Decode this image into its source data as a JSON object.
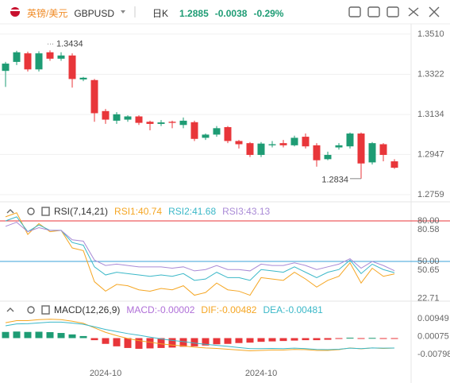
{
  "header": {
    "name": "英镑/美元",
    "symbol": "GBPUSD",
    "period": "日K",
    "price": "1.2885",
    "change": "-0.0038",
    "change_pct": "-0.29%"
  },
  "chart_data": [
    {
      "type": "candlestick",
      "up_color": "#1e9c74",
      "down_color": "#e8363a",
      "open": [
        1.3338,
        1.338,
        1.342,
        1.3345,
        1.3425,
        1.3395,
        1.341,
        1.3298,
        1.3295,
        1.315,
        1.3105,
        1.311,
        1.3125,
        1.31,
        1.309,
        1.31,
        1.3085,
        1.3098,
        1.3025,
        1.304,
        1.3075,
        1.301,
        1.3,
        1.2945,
        1.299,
        1.3,
        1.299,
        1.303,
        1.299,
        1.2925,
        1.298,
        1.2985,
        1.3045,
        1.291,
        1.2995,
        1.2915
      ],
      "high": [
        1.338,
        1.3432,
        1.3428,
        1.343,
        1.3434,
        1.3425,
        1.342,
        1.331,
        1.33,
        1.316,
        1.3145,
        1.313,
        1.313,
        1.3105,
        1.3108,
        1.3105,
        1.312,
        1.3105,
        1.3045,
        1.308,
        1.308,
        1.3015,
        1.3005,
        1.3005,
        1.301,
        1.3015,
        1.3035,
        1.3045,
        1.3,
        1.296,
        1.3,
        1.305,
        1.305,
        1.3005,
        1.3,
        1.2925
      ],
      "low": [
        1.3263,
        1.3365,
        1.3335,
        1.3335,
        1.3385,
        1.3385,
        1.326,
        1.329,
        1.31,
        1.309,
        1.309,
        1.31,
        1.3085,
        1.306,
        1.308,
        1.307,
        1.307,
        1.301,
        1.3015,
        1.303,
        1.3,
        1.2975,
        1.2935,
        1.2935,
        1.298,
        1.298,
        1.2985,
        1.2975,
        1.289,
        1.292,
        1.297,
        1.2975,
        1.2834,
        1.29,
        1.2915,
        1.288
      ],
      "close": [
        1.3372,
        1.3425,
        1.3345,
        1.342,
        1.3395,
        1.341,
        1.33,
        1.3306,
        1.314,
        1.311,
        1.3135,
        1.3125,
        1.3095,
        1.309,
        1.3097,
        1.3095,
        1.3105,
        1.302,
        1.304,
        1.307,
        1.301,
        1.2995,
        1.2945,
        1.2998,
        1.2995,
        1.299,
        1.3025,
        1.2985,
        1.292,
        1.2945,
        1.299,
        1.3045,
        1.2905,
        1.3,
        1.2945,
        1.2885
      ],
      "max_label": "1.3434",
      "min_label": "1.2834",
      "ylim": [
        1.2733,
        1.3558
      ],
      "yticks": [
        {
          "value": 1.351,
          "label": "1.3510"
        },
        1.3322,
        1.3134,
        1.2947,
        1.2759
      ],
      "grid": true
    },
    {
      "type": "line",
      "title": "RSI(7,14,21)",
      "series": [
        {
          "name": "RSI1:40.74",
          "color": "#f5a623",
          "values": [
            83,
            86,
            70,
            78,
            72,
            73,
            60,
            58,
            35,
            28,
            33,
            32,
            29,
            28,
            30,
            29,
            32,
            25,
            27,
            34,
            29,
            28,
            25,
            38,
            37,
            36,
            42,
            37,
            31,
            36,
            39,
            49,
            34,
            45,
            39,
            40.74
          ]
        },
        {
          "name": "RSI2:41.68",
          "color": "#3bb8c8",
          "values": [
            80,
            83,
            72,
            77,
            73,
            73,
            64,
            62,
            46,
            40,
            42,
            41,
            40,
            39,
            40,
            39,
            41,
            36,
            37,
            42,
            38,
            38,
            36,
            44,
            43,
            42,
            46,
            42,
            38,
            42,
            44,
            51,
            41,
            48,
            44,
            41.68
          ]
        },
        {
          "name": "RSI3:43.13",
          "color": "#a98ad6",
          "values": [
            76,
            79,
            72,
            75,
            73,
            73,
            66,
            65,
            51,
            47,
            48,
            47,
            46,
            46,
            46,
            45,
            46,
            43,
            44,
            47,
            44,
            44,
            43,
            48,
            47,
            47,
            49,
            47,
            44,
            46,
            48,
            52,
            45,
            50,
            47,
            43.13
          ]
        }
      ],
      "ylim": [
        21.2,
        89.4
      ],
      "yticks": [
        {
          "value": 80,
          "label": "80.00",
          "color": "#e8363a"
        },
        80.58,
        {
          "value": 50,
          "label": "50.00",
          "color": "#3aa0d8"
        },
        50.65,
        22.71
      ]
    },
    {
      "type": "macd",
      "title": "MACD(12,26,9)",
      "categories": [
        null,
        null,
        null,
        null,
        null,
        null,
        null,
        null,
        null,
        "2024-10",
        null,
        null,
        null,
        null,
        null,
        null,
        null,
        null,
        null,
        null,
        null,
        null,
        null,
        "2024-10",
        null,
        null,
        null,
        null,
        null,
        null,
        null,
        null,
        null,
        null,
        null,
        null
      ],
      "histogram": {
        "name": "MACD:-0.00002",
        "color": "#b070d8",
        "up_color": "#1e9c74",
        "down_color": "#e8363a",
        "values": [
          0.003,
          0.0032,
          0.003,
          0.0031,
          0.0029,
          0.0025,
          0.0018,
          0.001,
          -0.001,
          -0.0028,
          -0.004,
          -0.0048,
          -0.0052,
          -0.005,
          -0.0048,
          -0.0046,
          -0.0042,
          -0.004,
          -0.0036,
          -0.003,
          -0.0028,
          -0.0024,
          -0.0022,
          -0.0018,
          -0.0016,
          -0.0014,
          -0.0012,
          -0.001,
          -0.001,
          -0.0008,
          -0.0004,
          0.0002,
          -0.0002,
          0.0001,
          -0.0002,
          -2e-05
        ]
      },
      "series": [
        {
          "name": "DIF:-0.00482",
          "color": "#f5a623",
          "values": [
            0.0075,
            0.0085,
            0.0085,
            0.009,
            0.0092,
            0.009,
            0.0082,
            0.0072,
            0.005,
            0.0028,
            0.0012,
            -0.0002,
            -0.0012,
            -0.002,
            -0.0028,
            -0.0034,
            -0.0038,
            -0.0044,
            -0.0048,
            -0.005,
            -0.0054,
            -0.0058,
            -0.0062,
            -0.006,
            -0.0058,
            -0.0058,
            -0.0055,
            -0.0056,
            -0.006,
            -0.006,
            -0.0056,
            -0.0048,
            -0.0052,
            -0.0048,
            -0.005,
            -0.00482
          ]
        },
        {
          "name": "DEA:-0.00481",
          "color": "#3bb8c8",
          "values": [
            0.006,
            0.0069,
            0.007,
            0.0074,
            0.0078,
            0.0078,
            0.0073,
            0.0067,
            0.0055,
            0.0042,
            0.0032,
            0.0022,
            0.0014,
            0.0005,
            -0.0004,
            -0.0011,
            -0.0017,
            -0.0024,
            -0.003,
            -0.0035,
            -0.004,
            -0.0046,
            -0.0051,
            -0.0051,
            -0.005,
            -0.0051,
            -0.0049,
            -0.0051,
            -0.0055,
            -0.0056,
            -0.0054,
            -0.0049,
            -0.0051,
            -0.0048,
            -0.0049,
            -0.00481
          ]
        }
      ],
      "ylim": [
        -0.01565,
        0.01759
      ],
      "yticks": [
        0.00949,
        0.00075,
        -0.00798
      ]
    }
  ]
}
